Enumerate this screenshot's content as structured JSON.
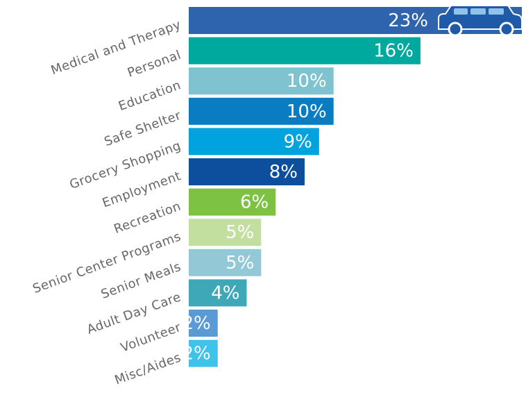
{
  "chart_data": {
    "type": "bar",
    "orientation": "horizontal",
    "categories": [
      "Medical and Therapy",
      "Personal",
      "Education",
      "Safe Shelter",
      "Grocery Shopping",
      "Employment",
      "Recreation",
      "Senior Center Programs",
      "Senior Meals",
      "Adult Day Care",
      "Volunteer",
      "Misc/Aides"
    ],
    "values": [
      23,
      16,
      10,
      10,
      9,
      8,
      6,
      5,
      5,
      4,
      2,
      2
    ],
    "value_labels": [
      "23%",
      "16%",
      "10%",
      "10%",
      "9%",
      "8%",
      "6%",
      "5%",
      "5%",
      "4%",
      "2%",
      "2%"
    ],
    "colors": [
      "#2e64ad",
      "#00a99d",
      "#7fc3d1",
      "#0a7cc1",
      "#00a3dd",
      "#0d4f9c",
      "#7dc242",
      "#c2dfa0",
      "#93c8d6",
      "#3fa8b8",
      "#5a9bd5",
      "#3fc3ea"
    ]
  }
}
